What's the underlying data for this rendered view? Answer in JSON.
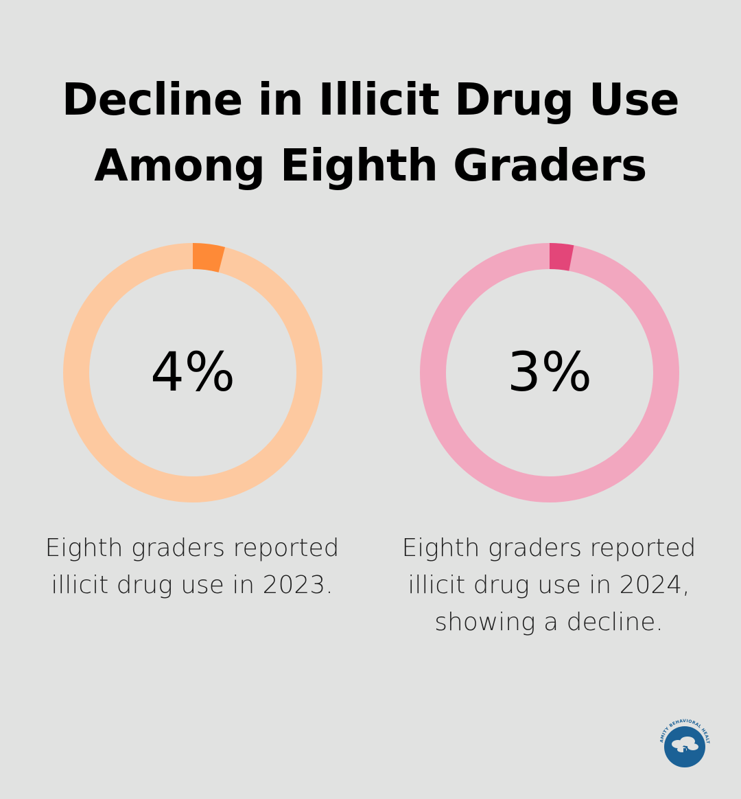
{
  "title": {
    "line1": "Decline in Illicit Drug Use",
    "line2": "Among Eighth Graders"
  },
  "chart_data": [
    {
      "type": "pie",
      "categories": [
        "2023"
      ],
      "values": [
        4
      ],
      "value_label": "4%",
      "caption": "Eighth graders reported illicit drug use in 2023.",
      "caption_lines": [
        "Eighth graders reported",
        "illicit drug use in 2023."
      ],
      "colors": {
        "highlight": "#fe8a37",
        "track": "#fdc9a0"
      }
    },
    {
      "type": "pie",
      "categories": [
        "2024"
      ],
      "values": [
        3
      ],
      "value_label": "3%",
      "caption": "Eighth graders reported illicit drug use in 2024, showing a decline.",
      "caption_lines": [
        "Eighth graders reported",
        "illicit drug use in 2024,",
        "showing a decline."
      ],
      "colors": {
        "highlight": "#e34679",
        "track": "#f2a7bf"
      }
    }
  ],
  "logo": {
    "icon": "tree-logo-icon",
    "text": "AMITY BEHAVIORAL HEALTH NETWORK",
    "color": "#1b6196"
  }
}
